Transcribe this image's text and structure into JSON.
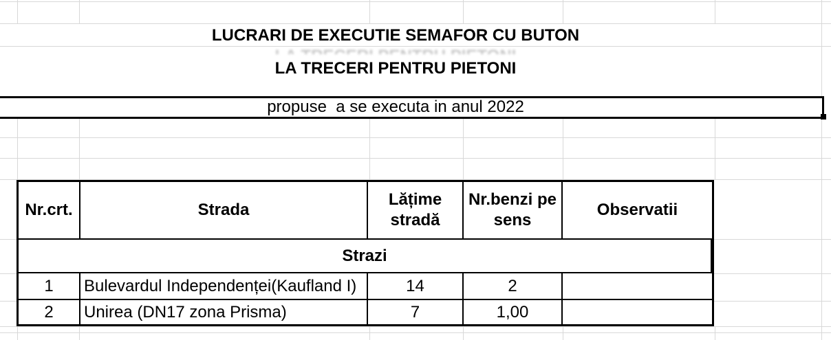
{
  "sheet": {
    "title_line1": "LUCRARI DE EXECUTIE SEMAFOR CU BUTON",
    "title_line2": "LA TRECERI PENTRU PIETONI",
    "proposal_line": "propuse  a se executa in anul 2022"
  },
  "table": {
    "headers": {
      "nr": "Nr.crt.",
      "strada": "Strada",
      "latime": "Lățime\nstradă",
      "benzi": "Nr.benzi pe\nsens",
      "observatii": "Observatii"
    },
    "section_label": "Strazi",
    "rows": [
      {
        "nr": "1",
        "strada": "Bulevardul Independenței(Kaufland I)",
        "latime": "14",
        "benzi": "2",
        "observatii": ""
      },
      {
        "nr": "2",
        "strada": "Unirea (DN17 zona Prisma)",
        "latime": "7",
        "benzi": "1,00",
        "observatii": ""
      }
    ]
  },
  "colors": {
    "background": "#ffffff",
    "gridline": "#d8d8d8",
    "border": "#000000",
    "text": "#000000"
  }
}
